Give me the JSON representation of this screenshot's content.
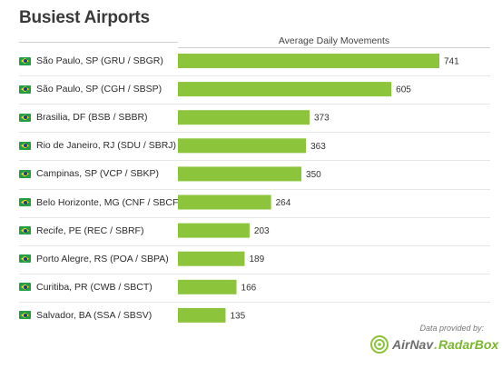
{
  "title": "Busiest Airports",
  "series_label": "Average Daily Movements",
  "credit": {
    "provided_by": "Data provided by:",
    "logo_text_1": "AirNav",
    "logo_sep": ".",
    "logo_text_2": "RadarBox"
  },
  "colors": {
    "bar": "#8cc43c",
    "flag_green": "#229e45",
    "flag_yellow": "#f8d90f",
    "flag_blue": "#1f3d8f"
  },
  "icons": {
    "row_flag": "brazil-flag-icon",
    "logo": "airnav-radarbox-logo-icon"
  },
  "chart_data": {
    "type": "bar",
    "orientation": "horizontal",
    "title": "Busiest Airports",
    "categories": [
      "São Paulo, SP (GRU / SBGR)",
      "São Paulo, SP (CGH / SBSP)",
      "Brasilia, DF (BSB / SBBR)",
      "Rio de Janeiro, RJ (SDU / SBRJ)",
      "Campinas, SP (VCP / SBKP)",
      "Belo Horizonte, MG (CNF / SBCF)",
      "Recife, PE (REC / SBRF)",
      "Porto Alegre, RS (POA / SBPA)",
      "Curitiba, PR (CWB / SBCT)",
      "Salvador, BA (SSA / SBSV)"
    ],
    "series": [
      {
        "name": "Average Daily Movements",
        "values": [
          741,
          605,
          373,
          363,
          350,
          264,
          203,
          189,
          166,
          135
        ]
      }
    ],
    "xlim": [
      0,
      741
    ],
    "grid": false,
    "data_labels": true
  }
}
